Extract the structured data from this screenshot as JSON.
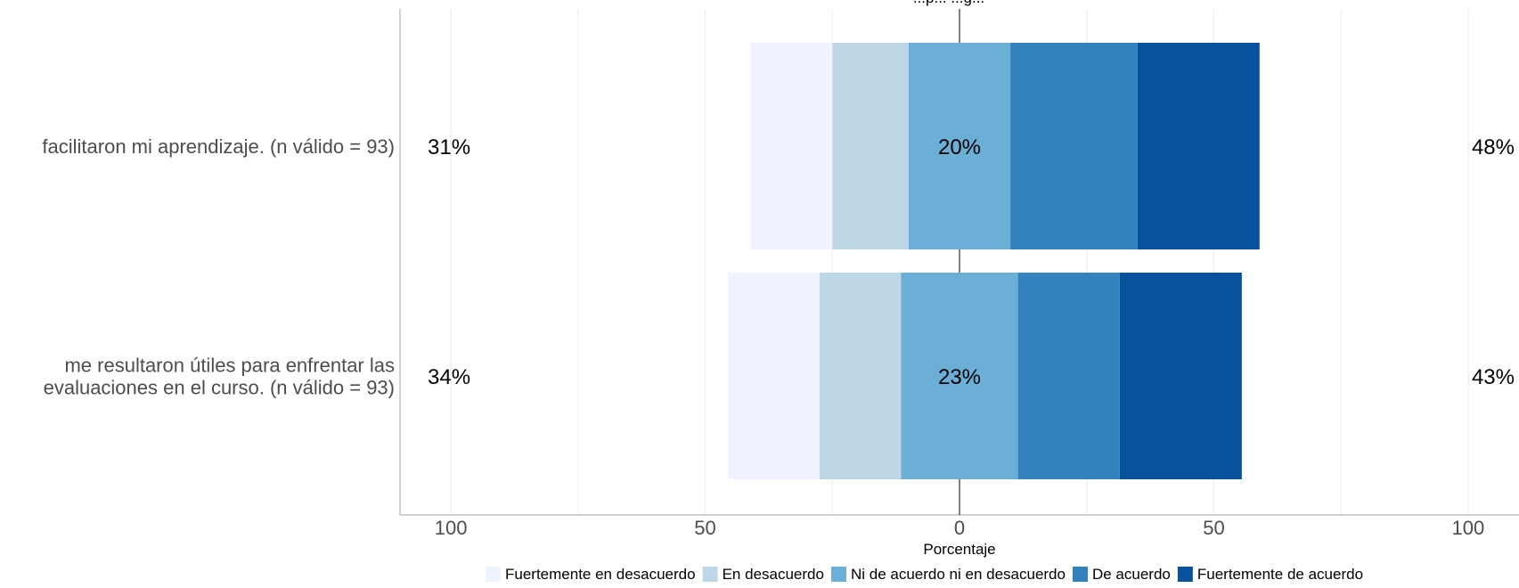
{
  "chart_data": {
    "type": "bar",
    "orientation": "horizontal",
    "stacking": "diverging-centered",
    "title": "...p... ...g...",
    "xlabel": "Porcentaje",
    "ylabel": "",
    "xlim": [
      -110,
      110
    ],
    "x_ticks": [
      -100,
      -50,
      0,
      50,
      100
    ],
    "x_tick_labels": [
      "100",
      "50",
      "0",
      "50",
      "100"
    ],
    "grid": true,
    "legend_placement": "bottom",
    "levels": [
      "Fuertemente en desacuerdo",
      "En desacuerdo",
      "Ni de acuerdo ni en desacuerdo",
      "De acuerdo",
      "Fuertemente de acuerdo"
    ],
    "colors": [
      "#eff3ff",
      "#bdd7e7",
      "#6baed6",
      "#3182bd",
      "#08519c"
    ],
    "categories": [
      [
        "facilitaron mi aprendizaje. (n válido = 93)"
      ],
      [
        "me resultaron útiles para enfrentar las",
        "evaluaciones en el curso. (n válido = 93)"
      ]
    ],
    "series": [
      {
        "name": "Fuertemente en desacuerdo",
        "values": [
          16,
          18
        ]
      },
      {
        "name": "En desacuerdo",
        "values": [
          15,
          16
        ]
      },
      {
        "name": "Ni de acuerdo ni en desacuerdo",
        "values": [
          20,
          23
        ]
      },
      {
        "name": "De acuerdo",
        "values": [
          25,
          20
        ]
      },
      {
        "name": "Fuertemente de acuerdo",
        "values": [
          24,
          24
        ]
      }
    ],
    "summary_labels": [
      {
        "left": "31%",
        "center": "20%",
        "right": "48%"
      },
      {
        "left": "34%",
        "center": "23%",
        "right": "43%"
      }
    ]
  }
}
